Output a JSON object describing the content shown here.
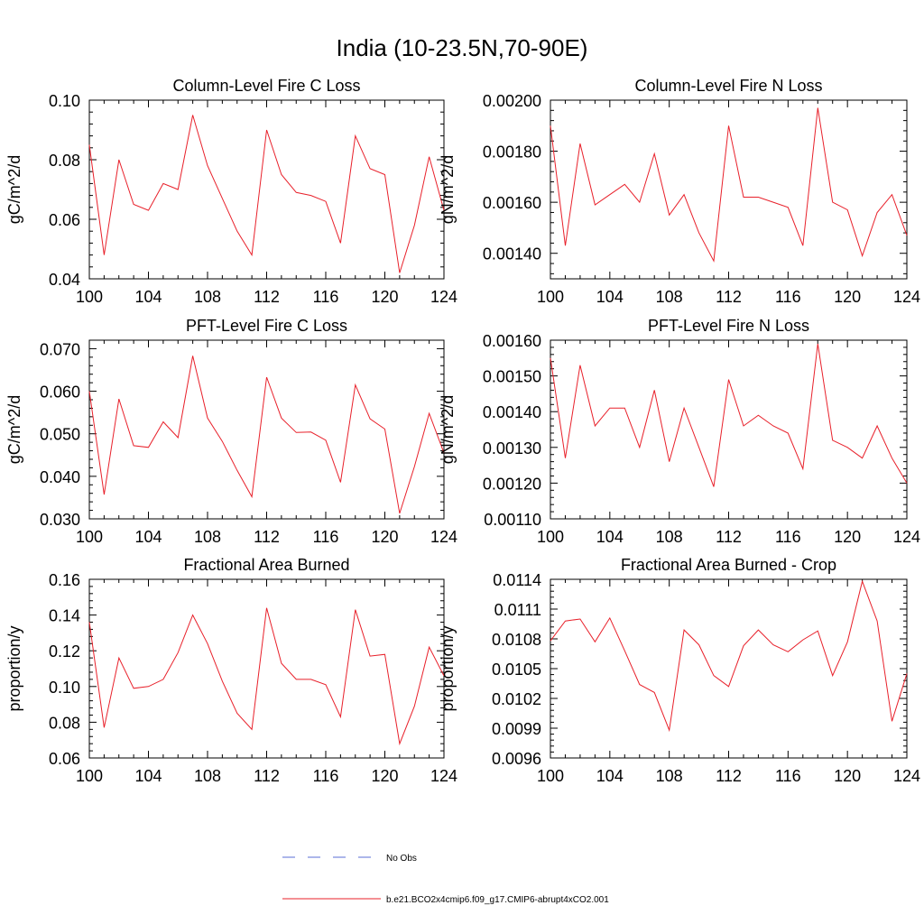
{
  "page": {
    "title": "India (10-23.5N,70-90E)"
  },
  "legend": {
    "placement": "bottom-center",
    "entries": [
      {
        "label": "No Obs",
        "color": "#5a6ed6",
        "style": "dashed"
      },
      {
        "label": "b.e21.BCO2x4cmip6.f09_g17.CMIP6-abrupt4xCO2.001",
        "color": "#e8202a",
        "style": "solid"
      }
    ]
  },
  "chart_data": [
    {
      "type": "line",
      "title": "Column-Level Fire C Loss",
      "ylabel": "gC/m^2/d",
      "xlim": [
        100,
        124
      ],
      "ylim": [
        0.04,
        0.1
      ],
      "xticks": [
        100,
        104,
        108,
        112,
        116,
        120,
        124
      ],
      "xtick_labels": [
        "100",
        "104",
        "108",
        "112",
        "116",
        "120",
        "124"
      ],
      "yticks": [
        0.04,
        0.06,
        0.08,
        0.1
      ],
      "ytick_labels": [
        "0.04",
        "0.06",
        "0.08",
        "0.10"
      ],
      "series": [
        {
          "name": "b.e21.BCO2x4cmip6.f09_g17.CMIP6-abrupt4xCO2.001",
          "color": "#e8202a",
          "x": [
            100,
            101,
            102,
            103,
            104,
            105,
            106,
            107,
            108,
            109,
            110,
            111,
            112,
            113,
            114,
            115,
            116,
            117,
            118,
            119,
            120,
            121,
            122,
            123,
            124
          ],
          "y": [
            0.085,
            0.048,
            0.08,
            0.065,
            0.063,
            0.072,
            0.07,
            0.095,
            0.078,
            0.067,
            0.056,
            0.048,
            0.09,
            0.075,
            0.069,
            0.068,
            0.066,
            0.052,
            0.088,
            0.077,
            0.075,
            0.042,
            0.058,
            0.081,
            0.063
          ]
        }
      ]
    },
    {
      "type": "line",
      "title": "Column-Level Fire N Loss",
      "ylabel": "gN/m^2/d",
      "xlim": [
        100,
        124
      ],
      "ylim": [
        0.0013,
        0.002
      ],
      "xticks": [
        100,
        104,
        108,
        112,
        116,
        120,
        124
      ],
      "xtick_labels": [
        "100",
        "104",
        "108",
        "112",
        "116",
        "120",
        "124"
      ],
      "yticks": [
        0.0014,
        0.0016,
        0.0018,
        0.002
      ],
      "ytick_labels": [
        "0.00140",
        "0.00160",
        "0.00180",
        "0.00200"
      ],
      "series": [
        {
          "name": "b.e21.BCO2x4cmip6.f09_g17.CMIP6-abrupt4xCO2.001",
          "color": "#e8202a",
          "x": [
            100,
            101,
            102,
            103,
            104,
            105,
            106,
            107,
            108,
            109,
            110,
            111,
            112,
            113,
            114,
            115,
            116,
            117,
            118,
            119,
            120,
            121,
            122,
            123,
            124
          ],
          "y": [
            0.0019,
            0.00143,
            0.00183,
            0.00159,
            0.00163,
            0.00167,
            0.0016,
            0.00179,
            0.00155,
            0.00163,
            0.00148,
            0.00137,
            0.0019,
            0.00162,
            0.00162,
            0.0016,
            0.00158,
            0.00143,
            0.00197,
            0.0016,
            0.00157,
            0.00139,
            0.00156,
            0.00163,
            0.00147
          ]
        }
      ]
    },
    {
      "type": "line",
      "title": "PFT-Level Fire C Loss",
      "ylabel": "gC/m^2/d",
      "xlim": [
        100,
        124
      ],
      "ylim": [
        0.03,
        0.072
      ],
      "xticks": [
        100,
        104,
        108,
        112,
        116,
        120,
        124
      ],
      "xtick_labels": [
        "100",
        "104",
        "108",
        "112",
        "116",
        "120",
        "124"
      ],
      "yticks": [
        0.03,
        0.04,
        0.05,
        0.06,
        0.07
      ],
      "ytick_labels": [
        "0.030",
        "0.040",
        "0.050",
        "0.060",
        "0.070"
      ],
      "series": [
        {
          "name": "b.e21.BCO2x4cmip6.f09_g17.CMIP6-abrupt4xCO2.001",
          "color": "#e8202a",
          "x": [
            100,
            101,
            102,
            103,
            104,
            105,
            106,
            107,
            108,
            109,
            110,
            111,
            112,
            113,
            114,
            115,
            116,
            117,
            118,
            119,
            120,
            121,
            122,
            123,
            124
          ],
          "y": [
            0.06,
            0.0357,
            0.0582,
            0.0472,
            0.0468,
            0.0528,
            0.0491,
            0.0683,
            0.0537,
            0.0482,
            0.0414,
            0.0352,
            0.0633,
            0.0537,
            0.0503,
            0.0504,
            0.0485,
            0.0386,
            0.0615,
            0.0535,
            0.0511,
            0.0313,
            0.0423,
            0.0548,
            0.0455
          ]
        }
      ]
    },
    {
      "type": "line",
      "title": "PFT-Level Fire N Loss",
      "ylabel": "gN/m^2/d",
      "xlim": [
        100,
        124
      ],
      "ylim": [
        0.0011,
        0.0016
      ],
      "xticks": [
        100,
        104,
        108,
        112,
        116,
        120,
        124
      ],
      "xtick_labels": [
        "100",
        "104",
        "108",
        "112",
        "116",
        "120",
        "124"
      ],
      "yticks": [
        0.0011,
        0.0012,
        0.0013,
        0.0014,
        0.0015,
        0.0016
      ],
      "ytick_labels": [
        "0.00110",
        "0.00120",
        "0.00130",
        "0.00140",
        "0.00150",
        "0.00160"
      ],
      "series": [
        {
          "name": "b.e21.BCO2x4cmip6.f09_g17.CMIP6-abrupt4xCO2.001",
          "color": "#e8202a",
          "x": [
            100,
            101,
            102,
            103,
            104,
            105,
            106,
            107,
            108,
            109,
            110,
            111,
            112,
            113,
            114,
            115,
            116,
            117,
            118,
            119,
            120,
            121,
            122,
            123,
            124
          ],
          "y": [
            0.00155,
            0.00127,
            0.00153,
            0.00136,
            0.00141,
            0.00141,
            0.0013,
            0.00146,
            0.00126,
            0.00141,
            0.0013,
            0.00119,
            0.00149,
            0.00136,
            0.00139,
            0.00136,
            0.00134,
            0.00124,
            0.00159,
            0.00132,
            0.0013,
            0.00127,
            0.00136,
            0.00127,
            0.0012
          ]
        }
      ]
    },
    {
      "type": "line",
      "title": "Fractional Area Burned",
      "ylabel": "proportion/y",
      "xlim": [
        100,
        124
      ],
      "ylim": [
        0.06,
        0.16
      ],
      "xticks": [
        100,
        104,
        108,
        112,
        116,
        120,
        124
      ],
      "xtick_labels": [
        "100",
        "104",
        "108",
        "112",
        "116",
        "120",
        "124"
      ],
      "yticks": [
        0.06,
        0.08,
        0.1,
        0.12,
        0.14,
        0.16
      ],
      "ytick_labels": [
        "0.06",
        "0.08",
        "0.10",
        "0.12",
        "0.14",
        "0.16"
      ],
      "series": [
        {
          "name": "b.e21.BCO2x4cmip6.f09_g17.CMIP6-abrupt4xCO2.001",
          "color": "#e8202a",
          "x": [
            100,
            101,
            102,
            103,
            104,
            105,
            106,
            107,
            108,
            109,
            110,
            111,
            112,
            113,
            114,
            115,
            116,
            117,
            118,
            119,
            120,
            121,
            122,
            123,
            124
          ],
          "y": [
            0.136,
            0.077,
            0.116,
            0.099,
            0.1,
            0.104,
            0.119,
            0.14,
            0.124,
            0.103,
            0.085,
            0.076,
            0.144,
            0.113,
            0.104,
            0.104,
            0.101,
            0.083,
            0.143,
            0.117,
            0.118,
            0.068,
            0.089,
            0.122,
            0.106
          ]
        }
      ]
    },
    {
      "type": "line",
      "title": "Fractional Area Burned - Crop",
      "ylabel": "proportion/y",
      "xlim": [
        100,
        124
      ],
      "ylim": [
        0.0096,
        0.0114
      ],
      "xticks": [
        100,
        104,
        108,
        112,
        116,
        120,
        124
      ],
      "xtick_labels": [
        "100",
        "104",
        "108",
        "112",
        "116",
        "120",
        "124"
      ],
      "yticks": [
        0.0096,
        0.0099,
        0.0102,
        0.0105,
        0.0108,
        0.0111,
        0.0114
      ],
      "ytick_labels": [
        "0.0096",
        "0.0099",
        "0.0102",
        "0.0105",
        "0.0108",
        "0.0111",
        "0.0114"
      ],
      "series": [
        {
          "name": "b.e21.BCO2x4cmip6.f09_g17.CMIP6-abrupt4xCO2.001",
          "color": "#e8202a",
          "x": [
            100,
            101,
            102,
            103,
            104,
            105,
            106,
            107,
            108,
            109,
            110,
            111,
            112,
            113,
            114,
            115,
            116,
            117,
            118,
            119,
            120,
            121,
            122,
            123,
            124
          ],
          "y": [
            0.01078,
            0.01098,
            0.011,
            0.01077,
            0.01101,
            0.01068,
            0.01034,
            0.01026,
            0.00988,
            0.01089,
            0.01074,
            0.01043,
            0.01032,
            0.01073,
            0.01089,
            0.01074,
            0.01067,
            0.01079,
            0.01088,
            0.01043,
            0.01077,
            0.01138,
            0.01098,
            0.00997,
            0.01045
          ]
        }
      ]
    }
  ]
}
